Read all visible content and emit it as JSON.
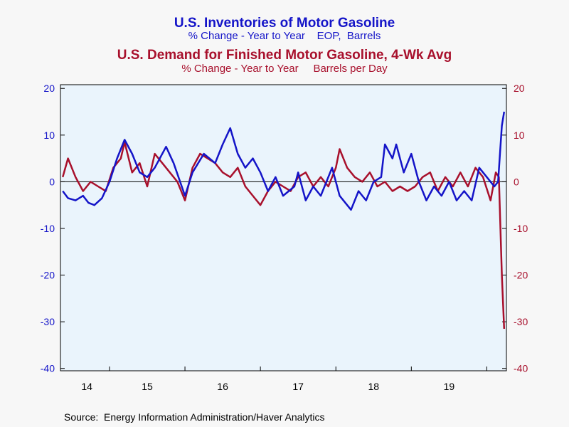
{
  "chart_data": {
    "type": "line",
    "titles": [
      {
        "text": "U.S. Inventories of Motor Gasoline",
        "color": "#1414c8"
      },
      {
        "text": "% Change - Year to Year    EOP,  Barrels",
        "color": "#1414c8"
      },
      {
        "text": "U.S. Demand for Finished Motor Gasoline, 4-Wk Avg",
        "color": "#a8102c"
      },
      {
        "text": "% Change - Year to Year     Barrels per Day",
        "color": "#a8102c"
      }
    ],
    "source": "Source:  Energy Information Administration/Haver Analytics",
    "xlim": [
      2014.35,
      2020.26
    ],
    "xticks": [
      2015,
      2016,
      2017,
      2018,
      2019,
      2020
    ],
    "year_labels": [
      {
        "value": 2014.7,
        "label": "14"
      },
      {
        "value": 2015.5,
        "label": "15"
      },
      {
        "value": 2016.5,
        "label": "16"
      },
      {
        "value": 2017.5,
        "label": "17"
      },
      {
        "value": 2018.5,
        "label": "18"
      },
      {
        "value": 2019.5,
        "label": "19"
      }
    ],
    "ylim": [
      -40.5,
      20.8
    ],
    "yticks": [
      -40,
      -30,
      -20,
      -10,
      0,
      10,
      20
    ],
    "y2lim": [
      -40.5,
      20.8
    ],
    "y2ticks": [
      -40,
      -30,
      -20,
      -10,
      0,
      10,
      20
    ],
    "zero_line": true,
    "series": [
      {
        "name": "U.S. Inventories of Motor Gasoline",
        "color": "#1414c8",
        "axis": "y",
        "x": [
          2014.38,
          2014.45,
          2014.55,
          2014.65,
          2014.72,
          2014.8,
          2014.9,
          2015.0,
          2015.1,
          2015.2,
          2015.3,
          2015.4,
          2015.5,
          2015.6,
          2015.75,
          2015.85,
          2016.0,
          2016.1,
          2016.25,
          2016.4,
          2016.5,
          2016.6,
          2016.7,
          2016.8,
          2016.9,
          2017.0,
          2017.1,
          2017.2,
          2017.3,
          2017.45,
          2017.5,
          2017.6,
          2017.7,
          2017.8,
          2017.95,
          2018.05,
          2018.2,
          2018.3,
          2018.4,
          2018.5,
          2018.6,
          2018.65,
          2018.75,
          2018.8,
          2018.9,
          2019.0,
          2019.1,
          2019.2,
          2019.3,
          2019.4,
          2019.5,
          2019.6,
          2019.7,
          2019.8,
          2019.9,
          2020.0,
          2020.1,
          2020.15,
          2020.2,
          2020.23
        ],
        "values": [
          -2,
          -3.5,
          -4,
          -3,
          -4.5,
          -5,
          -3.5,
          0,
          5,
          9,
          6,
          2,
          1,
          3,
          7.5,
          4,
          -3,
          2,
          6,
          4,
          8,
          11.5,
          6,
          3,
          5,
          2,
          -2,
          1,
          -3,
          -1,
          2,
          -4,
          -1,
          -3,
          3,
          -3,
          -6,
          -2,
          -4,
          0,
          1,
          8,
          5,
          8,
          2,
          6,
          0,
          -4,
          -1,
          -3,
          0,
          -4,
          -2,
          -4,
          3,
          1,
          -1,
          0,
          12,
          15
        ]
      },
      {
        "name": "U.S. Demand for Finished Motor Gasoline, 4-Wk Avg",
        "color": "#a8102c",
        "axis": "y2",
        "x": [
          2014.38,
          2014.45,
          2014.55,
          2014.65,
          2014.75,
          2014.85,
          2014.95,
          2015.05,
          2015.15,
          2015.2,
          2015.3,
          2015.4,
          2015.5,
          2015.6,
          2015.7,
          2015.8,
          2015.9,
          2016.0,
          2016.1,
          2016.2,
          2016.3,
          2016.4,
          2016.5,
          2016.6,
          2016.7,
          2016.8,
          2016.9,
          2017.0,
          2017.1,
          2017.2,
          2017.3,
          2017.4,
          2017.5,
          2017.6,
          2017.7,
          2017.8,
          2017.9,
          2018.0,
          2018.05,
          2018.15,
          2018.25,
          2018.35,
          2018.45,
          2018.55,
          2018.65,
          2018.75,
          2018.85,
          2018.95,
          2019.05,
          2019.15,
          2019.25,
          2019.35,
          2019.45,
          2019.55,
          2019.65,
          2019.75,
          2019.85,
          2019.95,
          2020.05,
          2020.12,
          2020.16,
          2020.2,
          2020.23
        ],
        "values": [
          1,
          5,
          1,
          -2,
          0,
          -1,
          -2,
          3,
          5,
          8.5,
          2,
          4,
          -1,
          6,
          4,
          2,
          0,
          -4,
          3,
          6,
          5,
          4,
          2,
          1,
          3,
          -1,
          -3,
          -5,
          -2,
          0,
          -1,
          -2,
          1,
          2,
          -1,
          1,
          -1,
          3,
          7,
          3,
          1,
          0,
          2,
          -1,
          0,
          -2,
          -1,
          -2,
          -1,
          1,
          2,
          -2,
          1,
          -1,
          2,
          -1,
          3,
          1,
          -4,
          2,
          1,
          -20,
          -31.5
        ]
      }
    ]
  }
}
